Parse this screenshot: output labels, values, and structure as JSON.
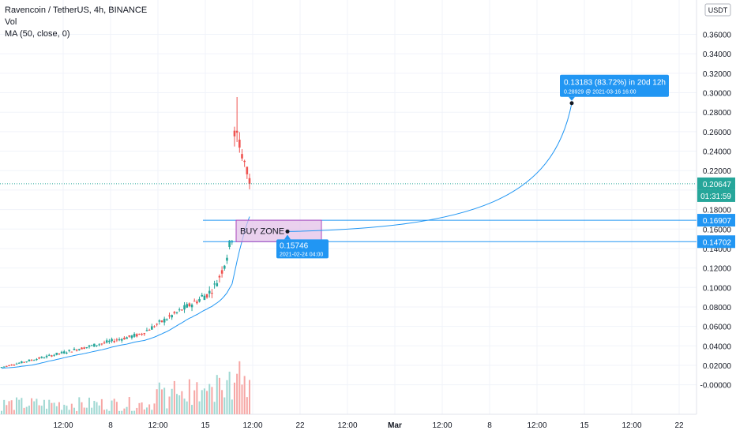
{
  "legend": {
    "symbol": "Ravencoin / TetherUS, 4h, BINANCE",
    "vol": "Vol",
    "ma": "MA (50, close, 0)"
  },
  "currency_label": "USDT",
  "colors": {
    "up": "#26a69a",
    "down": "#ef5350",
    "vol_up": "#9fd8d2",
    "vol_down": "#f6a6a4",
    "ma": "#2196f3",
    "level": "#2196f3",
    "price_tag": "#26a69a",
    "zone_fill": "#e1bee7",
    "zone_border": "#ab47bc"
  },
  "chart_data": {
    "type": "candlestick",
    "y_range": [
      -0.01,
      0.375
    ],
    "y_ticks": [
      -0.0,
      0.02,
      0.04,
      0.06,
      0.08,
      0.1,
      0.12,
      0.14,
      0.16,
      0.18,
      0.2,
      0.22,
      0.24,
      0.26,
      0.28,
      0.3,
      0.32,
      0.34,
      0.36
    ],
    "y_tick_labels": [
      "-0.00000",
      "0.02000",
      "0.04000",
      "0.06000",
      "0.08000",
      "0.10000",
      "0.12000",
      "0.14000",
      "0.16000",
      "0.18000",
      "0.20000",
      "0.22000",
      "0.24000",
      "0.26000",
      "0.28000",
      "0.30000",
      "0.32000",
      "0.34000",
      "0.36000"
    ],
    "x_range": [
      0,
      20.5
    ],
    "x_ticks": [
      {
        "label": "12:00",
        "day": 0.5
      },
      {
        "label": "8",
        "day": 1.0
      },
      {
        "label": "12:00",
        "day": 1.5
      },
      {
        "label": "15",
        "day": 2.0
      },
      {
        "label": "12:00",
        "day": 2.5
      },
      {
        "label": "22",
        "day": 3.0
      },
      {
        "label": "12:00",
        "day": 3.5
      },
      {
        "label": "Mar",
        "day": 4.0
      },
      {
        "label": "12:00",
        "day": 4.5
      },
      {
        "label": "8",
        "day": 5.0
      },
      {
        "label": "12:00",
        "day": 5.5
      },
      {
        "label": "15",
        "day": 6.0
      },
      {
        "label": "12:00",
        "day": 6.5
      },
      {
        "label": "22",
        "day": 7.0
      }
    ],
    "last_price": 0.20647,
    "countdown": "01:31:59",
    "levels": [
      {
        "value": 0.16907,
        "label": "0.16907"
      },
      {
        "value": 0.14702,
        "label": "0.14702"
      }
    ],
    "buy_zone": {
      "label": "BUY ZONE",
      "top": 0.16907,
      "bottom": 0.14702
    },
    "start_point": {
      "value": 0.15746,
      "label": "0.15746",
      "date": "2021-02-24 04:00"
    },
    "target_point": {
      "value": 0.28929,
      "label": "0.13183 (83.72%) in 20d 12h",
      "date": "0.28929 @ 2021-03-16  16:00"
    },
    "ohlc_pattern": "uptrend then parabolic spike to ~0.295 and pullback to ~0.206",
    "ma_period": 50
  }
}
